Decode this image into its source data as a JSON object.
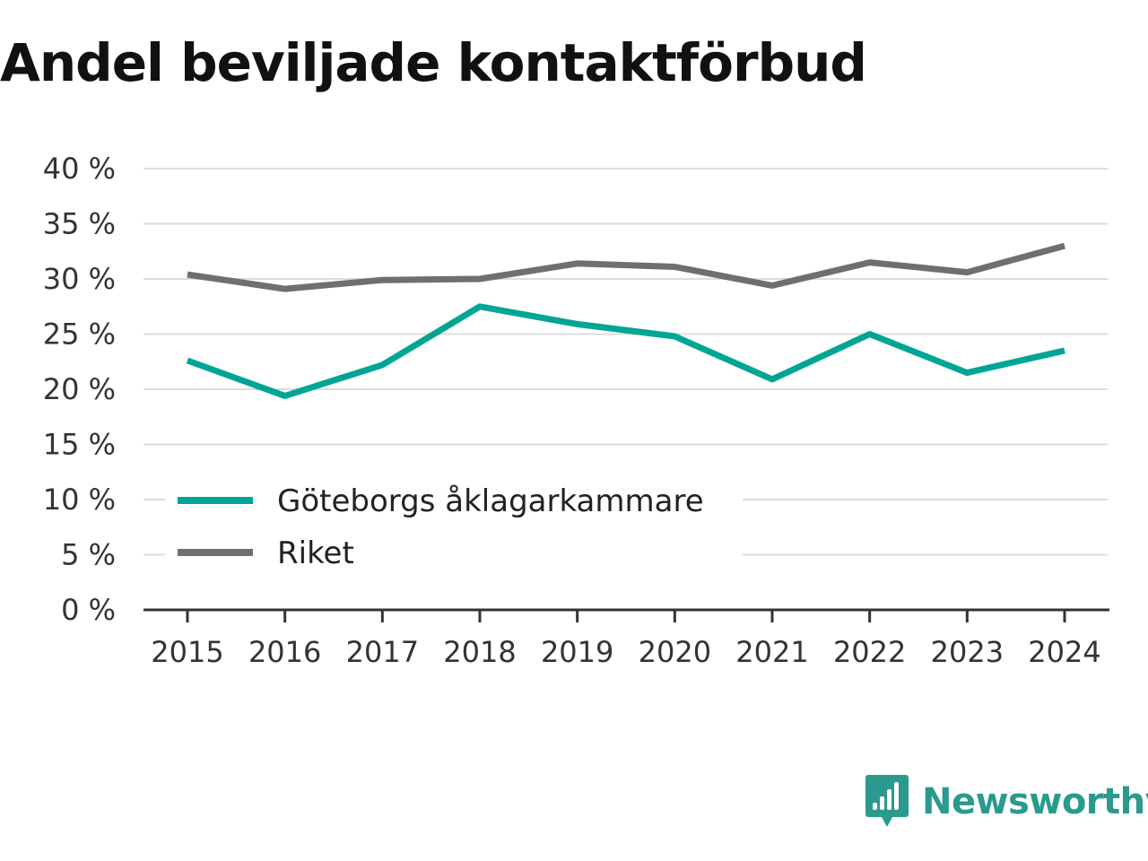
{
  "title": "Andel beviljade kontaktförbud",
  "brand": {
    "name": "Newsworthy",
    "icon": "newsworthy-logo-icon",
    "color": "#2a9a8e"
  },
  "chart_data": {
    "type": "line",
    "title": "Andel beviljade kontaktförbud",
    "xlabel": "",
    "ylabel": "",
    "x": [
      "2015",
      "2016",
      "2017",
      "2018",
      "2019",
      "2020",
      "2021",
      "2022",
      "2023",
      "2024"
    ],
    "ylim": [
      0,
      40
    ],
    "yticks": [
      0,
      5,
      10,
      15,
      20,
      25,
      30,
      35,
      40
    ],
    "ytick_labels": [
      "0 %",
      "5 %",
      "10 %",
      "15 %",
      "20 %",
      "25 %",
      "30 %",
      "35 %",
      "40 %"
    ],
    "grid": true,
    "legend_position": "lower-left",
    "series": [
      {
        "name": "Göteborgs åklagarkammare",
        "color": "#00a596",
        "values": [
          22.6,
          19.4,
          22.2,
          27.5,
          25.9,
          24.8,
          20.9,
          25.0,
          21.5,
          23.5
        ]
      },
      {
        "name": "Riket",
        "color": "#6e6e73",
        "values": [
          30.4,
          29.1,
          29.9,
          30.0,
          31.4,
          31.1,
          29.4,
          31.5,
          30.6,
          33.0
        ]
      }
    ]
  }
}
